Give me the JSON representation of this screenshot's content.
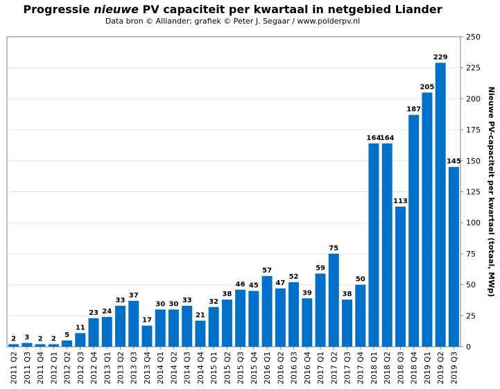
{
  "chart_data": {
    "type": "bar",
    "title_parts": [
      "Progressie ",
      "nieuwe",
      " PV capaciteit  per kwartaal in netgebied Liander"
    ],
    "subtitle": "Data bron © Alliander; grafiek © Peter J. Segaar / www.polderpv.nl",
    "xlabel": "",
    "ylabel": "Nieuwe PV-capaciteit per kwartaal (totaal, MWp)",
    "ylim": [
      0,
      250
    ],
    "yticks": [
      0,
      25,
      50,
      75,
      100,
      125,
      150,
      175,
      200,
      225,
      250
    ],
    "grid": true,
    "bar_color": "#0070c8",
    "categories": [
      "2011 Q2",
      "2011 Q3",
      "2011 Q4",
      "2012 Q1",
      "2012 Q2",
      "2012 Q3",
      "2012 Q4",
      "2013 Q1",
      "2013 Q2",
      "2013 Q3",
      "2013 Q4",
      "2014 Q1",
      "2014 Q2",
      "2014 Q3",
      "2014 Q4",
      "2015 Q1",
      "2015 Q2",
      "2015 Q3",
      "2015 Q4",
      "2016 Q1",
      "2016 Q2",
      "2016 Q3",
      "2016 Q4",
      "2017 Q1",
      "2017 Q2",
      "2017 Q3",
      "2017 Q4",
      "2018 Q1",
      "2018 Q2",
      "2018 Q3",
      "2018 Q4",
      "2019 Q1",
      "2019 Q2",
      "2019 Q3"
    ],
    "values": [
      2,
      3,
      2,
      2,
      5,
      11,
      23,
      24,
      33,
      37,
      17,
      30,
      30,
      33,
      21,
      32,
      38,
      46,
      45,
      57,
      47,
      52,
      39,
      59,
      75,
      38,
      50,
      164,
      164,
      113,
      187,
      205,
      229,
      145
    ]
  }
}
